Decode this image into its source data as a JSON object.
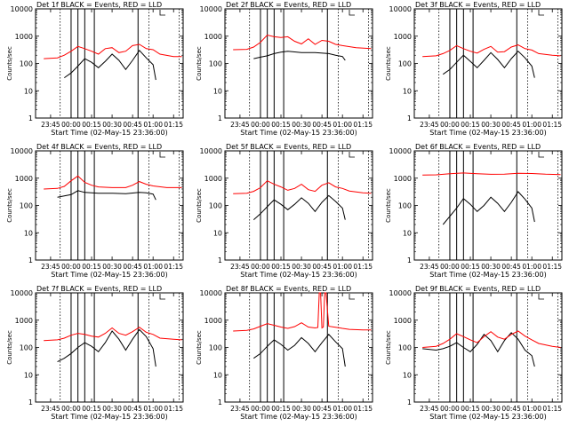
{
  "colors": {
    "events": "#000000",
    "lld": "#ff0000",
    "axis": "#000000"
  },
  "common": {
    "xlabel": "Start Time (02-May-15 23:36:00)",
    "ylabel": "Counts/sec",
    "x_ticks": [
      "23:45",
      "00:00",
      "00:15",
      "00:30",
      "00:45",
      "01:00",
      "01:15"
    ],
    "y_ticks": [
      "1",
      "10",
      "100",
      "1000",
      "10000"
    ]
  },
  "chart_data": [
    {
      "type": "line",
      "title": "Det 1f BLACK = Events, RED = LLD",
      "xlabel": "Start Time (02-May-15 23:36:00)",
      "ylabel": "Counts/sec",
      "yscale": "log",
      "ylim": [
        1,
        10000
      ],
      "x_ticks": [
        "23:45",
        "00:00",
        "00:15",
        "00:30",
        "00:45",
        "01:00",
        "01:15"
      ],
      "y_ticks": [
        "1",
        "10",
        "100",
        "1000",
        "10000"
      ],
      "series": [
        {
          "name": "Events",
          "color": "#000000",
          "x": [
            -5,
            0,
            5,
            10,
            15,
            20,
            25,
            30,
            35,
            40,
            45,
            50,
            55,
            60,
            62
          ],
          "y": [
            30,
            45,
            80,
            150,
            110,
            70,
            120,
            220,
            130,
            60,
            130,
            300,
            160,
            90,
            25
          ]
        },
        {
          "name": "LLD",
          "color": "#ff0000",
          "x": [
            -20,
            -10,
            -5,
            0,
            5,
            10,
            15,
            20,
            25,
            30,
            35,
            40,
            45,
            50,
            55,
            60,
            65,
            75,
            81
          ],
          "y": [
            150,
            160,
            200,
            280,
            420,
            350,
            280,
            220,
            350,
            380,
            250,
            280,
            450,
            500,
            350,
            320,
            220,
            180,
            180
          ]
        }
      ]
    },
    {
      "type": "line",
      "title": "Det 2f BLACK = Events, RED = LLD",
      "xlabel": "Start Time (02-May-15 23:36:00)",
      "ylabel": "Counts/sec",
      "yscale": "log",
      "ylim": [
        1,
        10000
      ],
      "x_ticks": [
        "23:45",
        "00:00",
        "00:15",
        "00:30",
        "00:45",
        "01:00",
        "01:15"
      ],
      "y_ticks": [
        "1",
        "10",
        "100",
        "1000",
        "10000"
      ],
      "series": [
        {
          "name": "Events",
          "color": "#000000",
          "x": [
            -5,
            0,
            5,
            10,
            15,
            20,
            30,
            40,
            50,
            55,
            60,
            62
          ],
          "y": [
            150,
            170,
            190,
            230,
            260,
            280,
            250,
            250,
            230,
            200,
            180,
            130
          ]
        },
        {
          "name": "LLD",
          "color": "#ff0000",
          "x": [
            -20,
            -10,
            -5,
            0,
            5,
            10,
            15,
            20,
            25,
            30,
            35,
            40,
            45,
            50,
            55,
            60,
            70,
            81
          ],
          "y": [
            320,
            330,
            400,
            600,
            1100,
            950,
            900,
            950,
            650,
            520,
            800,
            500,
            700,
            650,
            500,
            450,
            380,
            350
          ]
        }
      ]
    },
    {
      "type": "line",
      "title": "Det 3f BLACK = Events, RED = LLD",
      "xlabel": "Start Time (02-May-15 23:36:00)",
      "ylabel": "Counts/sec",
      "yscale": "log",
      "ylim": [
        1,
        10000
      ],
      "x_ticks": [
        "23:45",
        "00:00",
        "00:15",
        "00:30",
        "00:45",
        "01:00",
        "01:15"
      ],
      "y_ticks": [
        "1",
        "10",
        "100",
        "1000",
        "10000"
      ],
      "series": [
        {
          "name": "Events",
          "color": "#000000",
          "x": [
            -5,
            0,
            5,
            10,
            15,
            20,
            25,
            30,
            35,
            40,
            45,
            50,
            55,
            60,
            62
          ],
          "y": [
            40,
            60,
            110,
            200,
            120,
            70,
            130,
            250,
            140,
            70,
            150,
            280,
            160,
            80,
            30
          ]
        },
        {
          "name": "LLD",
          "color": "#ff0000",
          "x": [
            -20,
            -10,
            -5,
            0,
            5,
            10,
            15,
            20,
            25,
            30,
            35,
            40,
            45,
            50,
            55,
            60,
            65,
            75,
            81
          ],
          "y": [
            180,
            190,
            230,
            300,
            450,
            350,
            280,
            240,
            330,
            420,
            260,
            270,
            400,
            480,
            350,
            310,
            230,
            200,
            190
          ]
        }
      ]
    },
    {
      "type": "line",
      "title": "Det 4f BLACK = Events, RED = LLD",
      "xlabel": "Start Time (02-May-15 23:36:00)",
      "ylabel": "Counts/sec",
      "yscale": "log",
      "ylim": [
        1,
        10000
      ],
      "x_ticks": [
        "23:45",
        "00:00",
        "00:15",
        "00:30",
        "00:45",
        "01:00",
        "01:15"
      ],
      "y_ticks": [
        "1",
        "10",
        "100",
        "1000",
        "10000"
      ],
      "series": [
        {
          "name": "Events",
          "color": "#000000",
          "x": [
            -10,
            0,
            5,
            10,
            20,
            30,
            40,
            50,
            55,
            60,
            62
          ],
          "y": [
            200,
            250,
            350,
            300,
            280,
            280,
            270,
            300,
            290,
            260,
            160
          ]
        },
        {
          "name": "LLD",
          "color": "#ff0000",
          "x": [
            -20,
            -10,
            -5,
            0,
            5,
            10,
            15,
            20,
            30,
            40,
            45,
            50,
            55,
            60,
            70,
            81
          ],
          "y": [
            400,
            420,
            500,
            800,
            1200,
            700,
            550,
            480,
            450,
            450,
            550,
            750,
            600,
            520,
            450,
            450
          ]
        }
      ]
    },
    {
      "type": "line",
      "title": "Det 5f BLACK = Events, RED = LLD",
      "xlabel": "Start Time (02-May-15 23:36:00)",
      "ylabel": "Counts/sec",
      "yscale": "log",
      "ylim": [
        1,
        10000
      ],
      "x_ticks": [
        "23:45",
        "00:00",
        "00:15",
        "00:30",
        "00:45",
        "01:00",
        "01:15"
      ],
      "y_ticks": [
        "1",
        "10",
        "100",
        "1000",
        "10000"
      ],
      "series": [
        {
          "name": "Events",
          "color": "#000000",
          "x": [
            -5,
            0,
            5,
            10,
            15,
            20,
            25,
            30,
            35,
            40,
            45,
            50,
            55,
            60,
            62
          ],
          "y": [
            30,
            50,
            90,
            160,
            110,
            70,
            110,
            190,
            120,
            60,
            130,
            230,
            140,
            80,
            30
          ]
        },
        {
          "name": "LLD",
          "color": "#ff0000",
          "x": [
            -20,
            -10,
            -5,
            0,
            5,
            10,
            15,
            20,
            25,
            30,
            35,
            40,
            45,
            50,
            55,
            60,
            65,
            75,
            81
          ],
          "y": [
            270,
            280,
            330,
            450,
            800,
            600,
            480,
            360,
            420,
            600,
            380,
            330,
            550,
            680,
            480,
            420,
            340,
            290,
            280
          ]
        }
      ]
    },
    {
      "type": "line",
      "title": "Det 6f BLACK = Events, RED = LLD",
      "xlabel": "Start Time (02-May-15 23:36:00)",
      "ylabel": "Counts/sec",
      "yscale": "log",
      "ylim": [
        1,
        10000
      ],
      "x_ticks": [
        "23:45",
        "00:00",
        "00:15",
        "00:30",
        "00:45",
        "01:00",
        "01:15"
      ],
      "y_ticks": [
        "1",
        "10",
        "100",
        "1000",
        "10000"
      ],
      "series": [
        {
          "name": "Events",
          "color": "#000000",
          "x": [
            -5,
            0,
            5,
            10,
            15,
            20,
            25,
            30,
            35,
            40,
            45,
            50,
            55,
            60,
            62
          ],
          "y": [
            20,
            40,
            80,
            180,
            110,
            60,
            100,
            200,
            120,
            60,
            130,
            320,
            170,
            80,
            25
          ]
        },
        {
          "name": "LLD",
          "color": "#ff0000",
          "x": [
            -20,
            -10,
            0,
            10,
            20,
            30,
            40,
            50,
            60,
            70,
            81
          ],
          "y": [
            1300,
            1320,
            1450,
            1550,
            1450,
            1380,
            1400,
            1520,
            1480,
            1400,
            1350
          ]
        }
      ]
    },
    {
      "type": "line",
      "title": "Det 7f BLACK = Events, RED = LLD",
      "xlabel": "Start Time (02-May-15 23:36:00)",
      "ylabel": "Counts/sec",
      "yscale": "log",
      "ylim": [
        1,
        10000
      ],
      "x_ticks": [
        "23:45",
        "00:00",
        "00:15",
        "00:30",
        "00:45",
        "01:00",
        "01:15"
      ],
      "y_ticks": [
        "1",
        "10",
        "100",
        "1000",
        "10000"
      ],
      "series": [
        {
          "name": "Events",
          "color": "#000000",
          "x": [
            -10,
            -5,
            0,
            5,
            10,
            15,
            20,
            25,
            30,
            35,
            40,
            45,
            50,
            55,
            60,
            62
          ],
          "y": [
            30,
            40,
            60,
            100,
            150,
            110,
            70,
            150,
            400,
            200,
            80,
            200,
            450,
            250,
            90,
            20
          ]
        },
        {
          "name": "LLD",
          "color": "#ff0000",
          "x": [
            -20,
            -10,
            -5,
            0,
            5,
            10,
            15,
            20,
            25,
            30,
            35,
            40,
            45,
            50,
            55,
            60,
            65,
            75,
            81
          ],
          "y": [
            180,
            190,
            220,
            280,
            330,
            300,
            260,
            240,
            330,
            520,
            330,
            280,
            380,
            550,
            360,
            300,
            220,
            200,
            190
          ]
        }
      ]
    },
    {
      "type": "line",
      "title": "Det 8f BLACK = Events, RED = LLD",
      "xlabel": "Start Time (02-May-15 23:36:00)",
      "ylabel": "Counts/sec",
      "yscale": "log",
      "ylim": [
        1,
        10000
      ],
      "x_ticks": [
        "23:45",
        "00:00",
        "00:15",
        "00:30",
        "00:45",
        "01:00",
        "01:15"
      ],
      "y_ticks": [
        "1",
        "10",
        "100",
        "1000",
        "10000"
      ],
      "series": [
        {
          "name": "Events",
          "color": "#000000",
          "x": [
            -5,
            0,
            5,
            10,
            15,
            20,
            25,
            30,
            35,
            40,
            45,
            50,
            55,
            60,
            62
          ],
          "y": [
            40,
            60,
            110,
            190,
            130,
            80,
            120,
            230,
            140,
            70,
            150,
            300,
            160,
            90,
            20
          ]
        },
        {
          "name": "LLD",
          "color": "#ff0000",
          "x": [
            -20,
            -10,
            -5,
            0,
            5,
            10,
            15,
            20,
            25,
            30,
            35,
            40,
            42,
            43,
            44,
            45,
            46,
            47,
            48,
            50,
            55,
            60,
            65,
            75,
            81
          ],
          "y": [
            400,
            420,
            480,
            600,
            750,
            650,
            560,
            500,
            580,
            800,
            560,
            520,
            540,
            10000,
            10000,
            520,
            560,
            10000,
            10000,
            600,
            550,
            500,
            460,
            440,
            440
          ]
        }
      ]
    },
    {
      "type": "line",
      "title": "Det 9f BLACK = Events, RED = LLD",
      "xlabel": "Start Time (02-May-15 23:36:00)",
      "ylabel": "Counts/sec",
      "yscale": "log",
      "ylim": [
        1,
        10000
      ],
      "x_ticks": [
        "23:45",
        "00:00",
        "00:15",
        "00:30",
        "00:45",
        "01:00",
        "01:15"
      ],
      "y_ticks": [
        "1",
        "10",
        "100",
        "1000",
        "10000"
      ],
      "series": [
        {
          "name": "Events",
          "color": "#000000",
          "x": [
            -20,
            -10,
            -5,
            0,
            5,
            10,
            15,
            20,
            25,
            30,
            35,
            40,
            45,
            50,
            55,
            60,
            62
          ],
          "y": [
            90,
            80,
            90,
            110,
            150,
            100,
            70,
            130,
            300,
            180,
            70,
            180,
            350,
            200,
            80,
            50,
            20
          ]
        },
        {
          "name": "LLD",
          "color": "#ff0000",
          "x": [
            -20,
            -10,
            -5,
            0,
            5,
            10,
            15,
            20,
            25,
            30,
            35,
            40,
            45,
            50,
            55,
            60,
            65,
            75,
            81
          ],
          "y": [
            100,
            110,
            140,
            200,
            320,
            250,
            190,
            150,
            250,
            380,
            240,
            200,
            300,
            400,
            260,
            190,
            140,
            110,
            100
          ]
        }
      ]
    }
  ]
}
